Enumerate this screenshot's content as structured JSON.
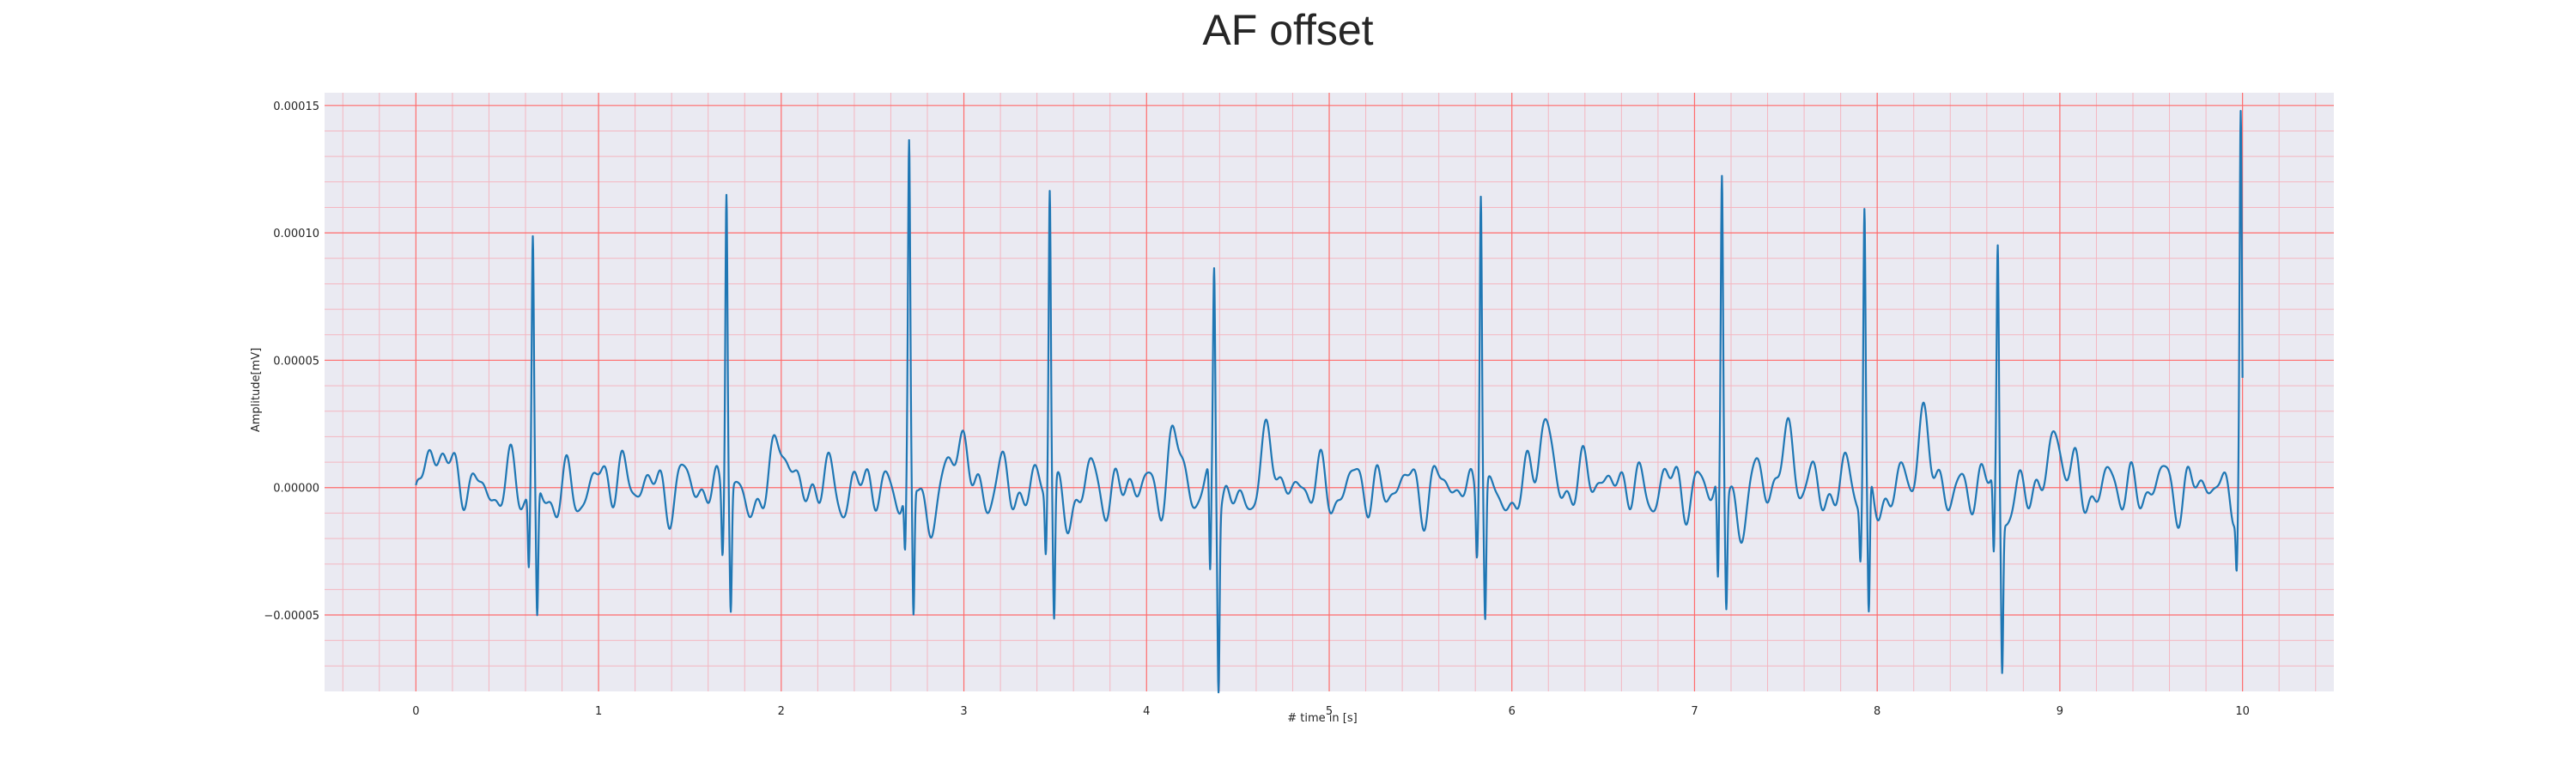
{
  "chart_data": {
    "type": "line",
    "title": "AF offset",
    "xlabel": "# time in [s]",
    "ylabel": "Amplitude[mV]",
    "xlim": [
      -0.5,
      10.5
    ],
    "ylim": [
      -8e-05,
      0.000155
    ],
    "x_ticks": [
      0,
      1,
      2,
      3,
      4,
      5,
      6,
      7,
      8,
      9,
      10
    ],
    "x_tick_labels": [
      "0",
      "1",
      "2",
      "3",
      "4",
      "5",
      "6",
      "7",
      "8",
      "9",
      "10"
    ],
    "y_ticks": [
      -5e-05,
      0,
      5e-05,
      0.0001,
      0.00015
    ],
    "y_tick_labels": [
      "−0.00005",
      "0.00000",
      "0.00005",
      "0.00010",
      "0.00015"
    ],
    "grid": true,
    "minor_grid": true,
    "legend": "none",
    "line_color": "#1f77b4",
    "background_color": "#eaeaf2",
    "major_grid_color": "#ff6b6b",
    "minor_grid_color": "#f4b6c0",
    "baseline": -8e-06,
    "beats": [
      {
        "t": 0.64,
        "r": 0.000101,
        "q": -2.8e-05,
        "s": -5e-05
      },
      {
        "t": 1.7,
        "r": 0.000125,
        "q": -2.2e-05,
        "s": -4.6e-05
      },
      {
        "t": 2.7,
        "r": 0.000128,
        "q": -2.5e-05,
        "s": -5.3e-05
      },
      {
        "t": 3.47,
        "r": 0.000122,
        "q": -2.2e-05,
        "s": -5.2e-05
      },
      {
        "t": 4.37,
        "r": 8.9e-05,
        "q": -4e-05,
        "s": -6.9e-05
      },
      {
        "t": 5.83,
        "r": 0.000127,
        "q": -2e-05,
        "s": -5e-05
      },
      {
        "t": 7.15,
        "r": 0.00012,
        "q": -4e-05,
        "s": -4.5e-05
      },
      {
        "t": 7.93,
        "r": 0.000113,
        "q": -2e-05,
        "s": -5.3e-05
      },
      {
        "t": 8.66,
        "r": 9.6e-05,
        "q": -3e-05,
        "s": -6.1e-05
      },
      {
        "t": 9.99,
        "r": 0.000144,
        "q": -2.2e-05,
        "s": -2.2e-05
      }
    ],
    "waves": [
      {
        "t": 0.15,
        "a": 2e-05,
        "w": 0.04
      },
      {
        "t": 0.08,
        "a": 1.2e-05,
        "w": 0.04
      },
      {
        "t": 1.11,
        "a": 1e-05,
        "w": 0.04
      },
      {
        "t": 2.01,
        "a": 1.8e-05,
        "w": 0.05
      },
      {
        "t": 2.98,
        "a": 2e-05,
        "w": 0.05
      },
      {
        "t": 4.15,
        "a": 1.5e-05,
        "w": 0.05
      },
      {
        "t": 4.68,
        "a": 1.5e-05,
        "w": 0.05
      },
      {
        "t": 6.18,
        "a": 2.5e-05,
        "w": 0.05
      },
      {
        "t": 6.47,
        "a": 1e-05,
        "w": 0.04
      },
      {
        "t": 7.5,
        "a": 2e-05,
        "w": 0.05
      },
      {
        "t": 8.24,
        "a": 3.2e-05,
        "w": 0.04
      },
      {
        "t": 8.98,
        "a": 2.3e-05,
        "w": 0.05
      }
    ]
  }
}
